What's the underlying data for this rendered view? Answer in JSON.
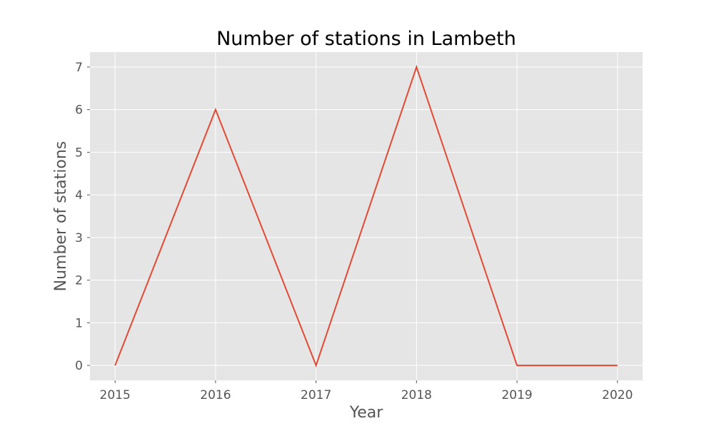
{
  "chart_data": {
    "type": "line",
    "title": "Number of stations in Lambeth",
    "xlabel": "Year",
    "ylabel": "Number of stations",
    "x": [
      2015,
      2016,
      2017,
      2018,
      2019,
      2020
    ],
    "series": [
      {
        "values": [
          0,
          6,
          0,
          7,
          0,
          0
        ],
        "color": "#E24A33"
      }
    ],
    "xticks": [
      "2015",
      "2016",
      "2017",
      "2018",
      "2019",
      "2020"
    ],
    "yticks": [
      "0",
      "1",
      "2",
      "3",
      "4",
      "5",
      "6",
      "7"
    ],
    "xlim": [
      2014.75,
      2020.25
    ],
    "ylim": [
      -0.35,
      7.35
    ],
    "grid": true,
    "style": {
      "plot_background": "#E5E5E5",
      "grid_color": "#FFFFFF",
      "text_color": "#555555",
      "title_color": "#000000"
    }
  }
}
